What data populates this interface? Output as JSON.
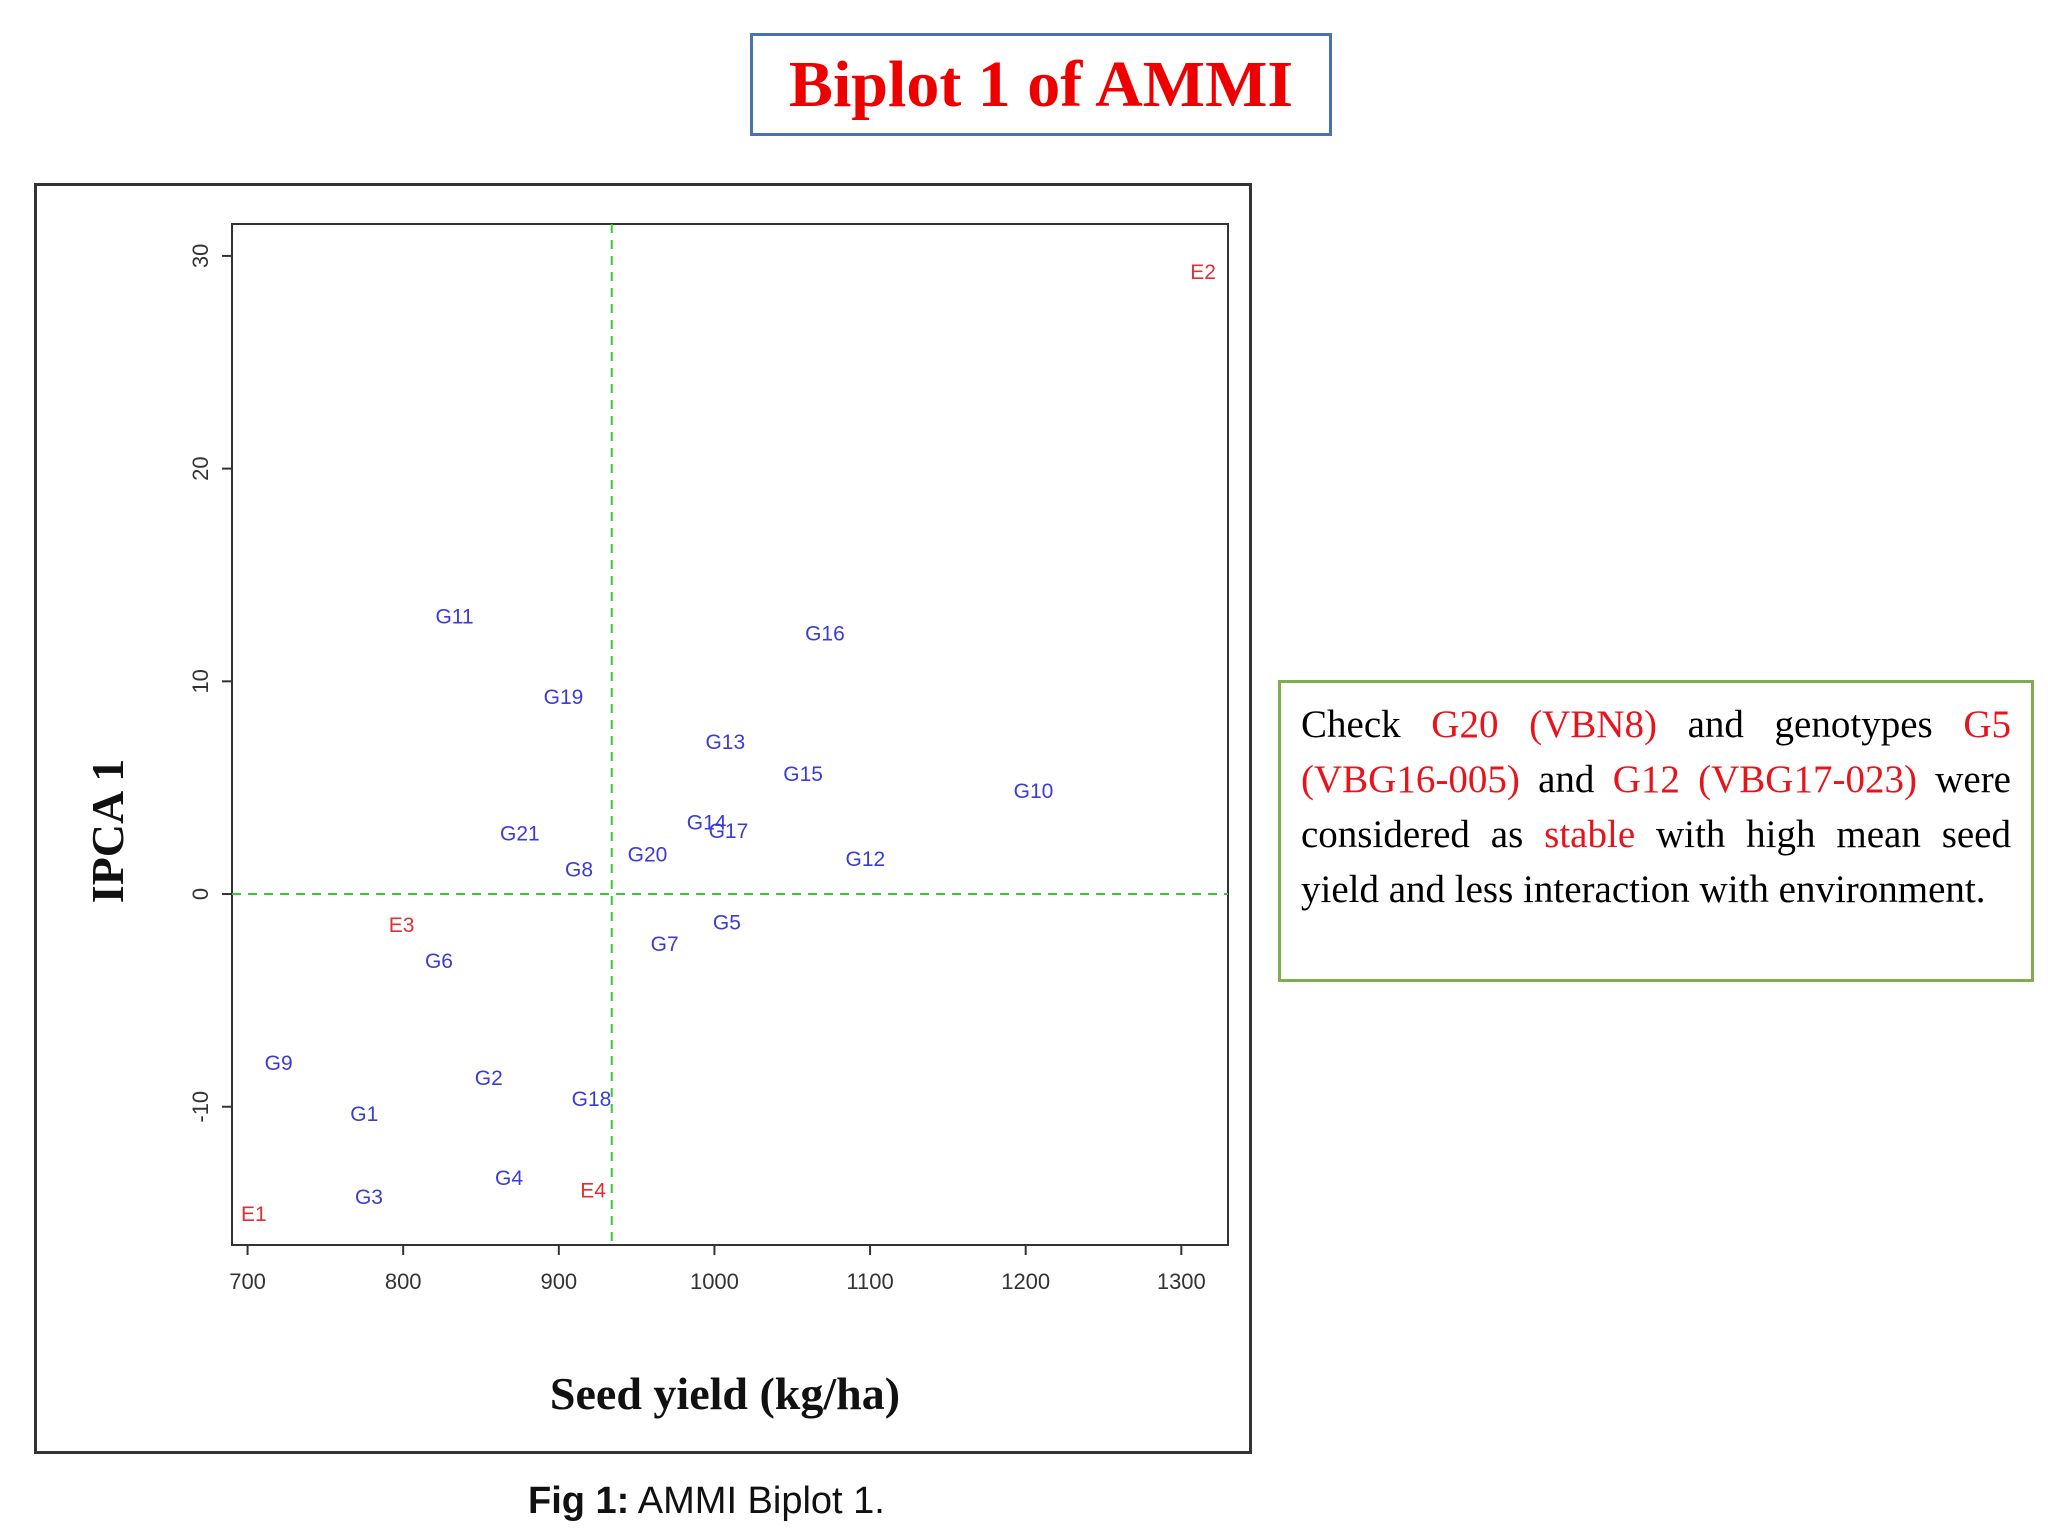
{
  "slide": {
    "title": "Biplot 1 of AMMI"
  },
  "caption": {
    "prefix": "Fig 1:",
    "text": " AMMI Biplot 1."
  },
  "note": {
    "t1": "Check ",
    "h1": "G20 (VBN8)",
    "t2": " and genotypes ",
    "h2": "G5 (VBG16-005)",
    "t3": " and ",
    "h3": "G12 (VBG17-023)",
    "t4": " were considered as ",
    "h4": "stable",
    "t5": " with high mean seed yield and less interaction with environment."
  },
  "colors": {
    "genotype": "#3b3bd6",
    "environment": "#e03030",
    "reference_line": "#33cc33",
    "highlight": "#e8141c"
  },
  "chart_data": {
    "type": "scatter",
    "xlabel": "Seed yield (kg/ha)",
    "ylabel": "IPCA 1",
    "xlim": [
      690,
      1330
    ],
    "ylim": [
      -16.5,
      31.5
    ],
    "xticks": [
      700,
      800,
      900,
      1000,
      1100,
      1200,
      1300
    ],
    "yticks": [
      -10,
      0,
      10,
      20,
      30
    ],
    "reference_lines": {
      "x": 934,
      "y": 0
    },
    "grid": false,
    "series": [
      {
        "group": "genotype",
        "points": [
          {
            "label": "G1",
            "x": 775,
            "y": -10.3
          },
          {
            "label": "G2",
            "x": 855,
            "y": -8.6
          },
          {
            "label": "G3",
            "x": 778,
            "y": -14.2
          },
          {
            "label": "G4",
            "x": 868,
            "y": -13.3
          },
          {
            "label": "G5",
            "x": 1008,
            "y": -1.3
          },
          {
            "label": "G6",
            "x": 823,
            "y": -3.1
          },
          {
            "label": "G7",
            "x": 968,
            "y": -2.3
          },
          {
            "label": "G8",
            "x": 913,
            "y": 1.2
          },
          {
            "label": "G9",
            "x": 720,
            "y": -7.9
          },
          {
            "label": "G10",
            "x": 1205,
            "y": 4.9
          },
          {
            "label": "G11",
            "x": 833,
            "y": 13.1
          },
          {
            "label": "G12",
            "x": 1097,
            "y": 1.7
          },
          {
            "label": "G13",
            "x": 1007,
            "y": 7.2
          },
          {
            "label": "G14",
            "x": 995,
            "y": 3.4
          },
          {
            "label": "G15",
            "x": 1057,
            "y": 5.7
          },
          {
            "label": "G16",
            "x": 1071,
            "y": 12.3
          },
          {
            "label": "G17",
            "x": 1009,
            "y": 3.0
          },
          {
            "label": "G18",
            "x": 921,
            "y": -9.6
          },
          {
            "label": "G19",
            "x": 903,
            "y": 9.3
          },
          {
            "label": "G20",
            "x": 957,
            "y": 1.9
          },
          {
            "label": "G21",
            "x": 875,
            "y": 2.9
          }
        ]
      },
      {
        "group": "environment",
        "points": [
          {
            "label": "E1",
            "x": 704,
            "y": -15.0
          },
          {
            "label": "E2",
            "x": 1314,
            "y": 29.3
          },
          {
            "label": "E3",
            "x": 799,
            "y": -1.4
          },
          {
            "label": "E4",
            "x": 922,
            "y": -13.9
          }
        ]
      }
    ]
  }
}
